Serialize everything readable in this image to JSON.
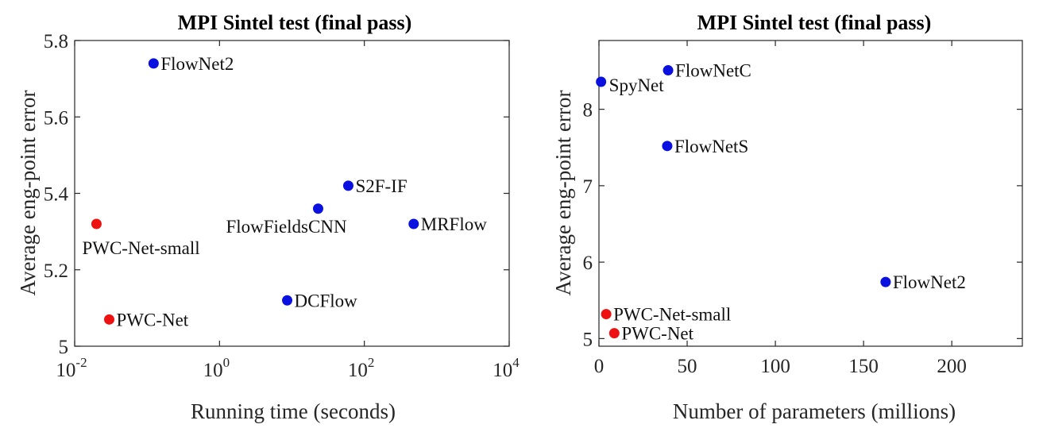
{
  "chart_data": [
    {
      "type": "scatter",
      "title": "MPI Sintel test (final pass)",
      "xlabel": "Running time (seconds)",
      "ylabel": "Average eng-point error",
      "xscale": "log",
      "xlim": [
        0.01,
        10000
      ],
      "ylim": [
        5.0,
        5.8
      ],
      "xtick_labels": [
        {
          "value": 0.01,
          "base": "10",
          "exp": "-2"
        },
        {
          "value": 1,
          "base": "10",
          "exp": "0"
        },
        {
          "value": 100,
          "base": "10",
          "exp": "2"
        },
        {
          "value": 10000,
          "base": "10",
          "exp": "4"
        }
      ],
      "yticks": [
        5,
        5.2,
        5.4,
        5.6,
        5.8
      ],
      "ytick_labels": [
        "5",
        "5.2",
        "5.4",
        "5.6",
        "5.8"
      ],
      "grid": false,
      "points": [
        {
          "label": "FlowNet2",
          "x": 0.123,
          "y": 5.74,
          "color": "#0a10e0",
          "label_pos": "right"
        },
        {
          "label": "S2F-IF",
          "x": 60,
          "y": 5.42,
          "color": "#0a10e0",
          "label_pos": "right"
        },
        {
          "label": "FlowFieldsCNN",
          "x": 23,
          "y": 5.36,
          "color": "#0a10e0",
          "label_pos": "below-left"
        },
        {
          "label": "MRFlow",
          "x": 480,
          "y": 5.32,
          "color": "#0a10e0",
          "label_pos": "right"
        },
        {
          "label": "PWC-Net-small",
          "x": 0.02,
          "y": 5.32,
          "color": "#ee1111",
          "label_pos": "below"
        },
        {
          "label": "DCFlow",
          "x": 8.6,
          "y": 5.12,
          "color": "#0a10e0",
          "label_pos": "right"
        },
        {
          "label": "PWC-Net",
          "x": 0.03,
          "y": 5.07,
          "color": "#ee1111",
          "label_pos": "right"
        }
      ]
    },
    {
      "type": "scatter",
      "title": "MPI Sintel test (final pass)",
      "xlabel": "Number of parameters (millions)",
      "ylabel": "Average eng-point error",
      "xlim": [
        0,
        240
      ],
      "ylim": [
        4.9,
        8.9
      ],
      "xticks": [
        0,
        50,
        100,
        150,
        200
      ],
      "xtick_labels": [
        "0",
        "50",
        "100",
        "150",
        "200"
      ],
      "yticks": [
        5,
        6,
        7,
        8
      ],
      "ytick_labels": [
        "5",
        "6",
        "7",
        "8"
      ],
      "grid": false,
      "points": [
        {
          "label": "SpyNet",
          "x": 1.2,
          "y": 8.36,
          "color": "#0a10e0",
          "label_pos": "below-right"
        },
        {
          "label": "FlowNetC",
          "x": 39.2,
          "y": 8.51,
          "color": "#0a10e0",
          "label_pos": "right"
        },
        {
          "label": "FlowNetS",
          "x": 38.7,
          "y": 7.52,
          "color": "#0a10e0",
          "label_pos": "right"
        },
        {
          "label": "FlowNet2",
          "x": 162.5,
          "y": 5.74,
          "color": "#0a10e0",
          "label_pos": "right"
        },
        {
          "label": "PWC-Net-small",
          "x": 4.1,
          "y": 5.32,
          "color": "#ee1111",
          "label_pos": "right"
        },
        {
          "label": "PWC-Net",
          "x": 8.7,
          "y": 5.07,
          "color": "#ee1111",
          "label_pos": "right"
        }
      ]
    }
  ]
}
